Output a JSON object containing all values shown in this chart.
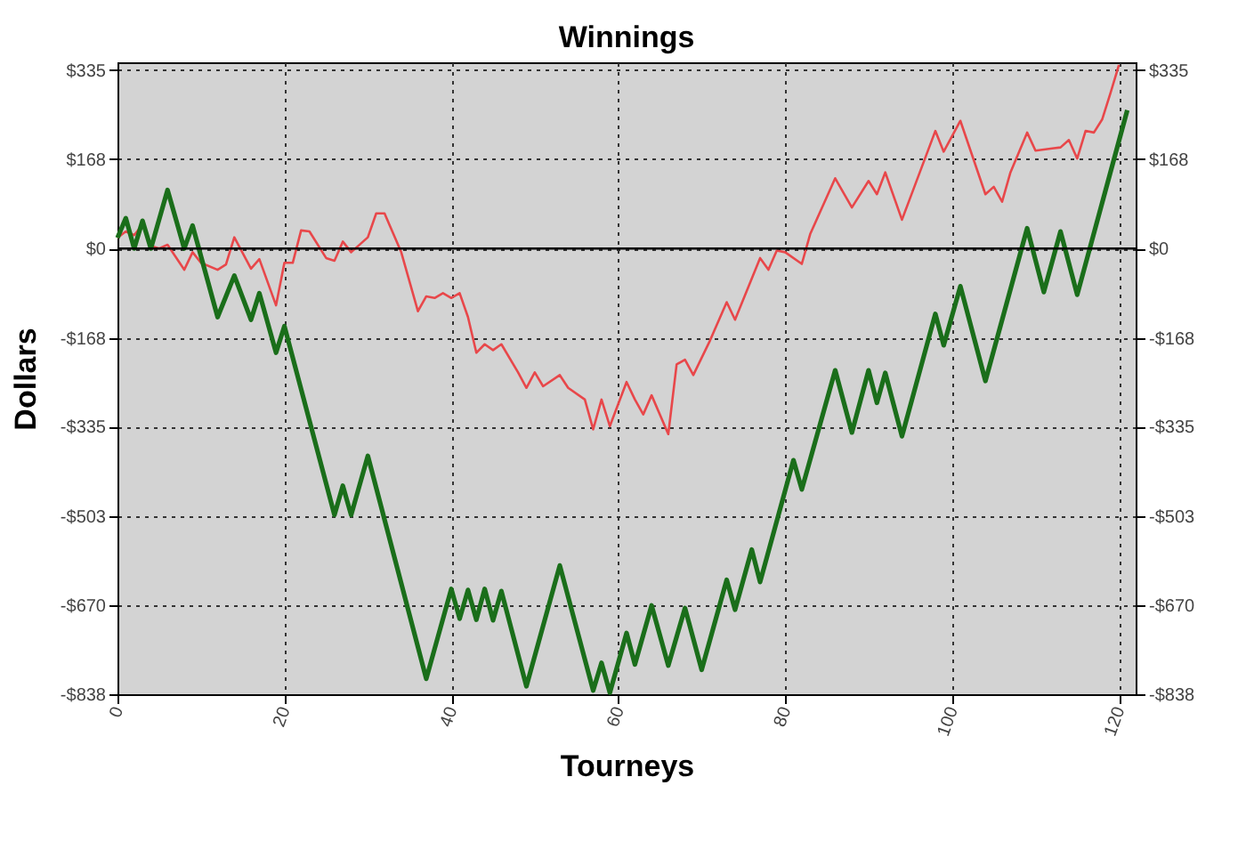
{
  "chart_data": {
    "type": "line",
    "title": "Winnings",
    "xlabel": "Tourneys",
    "ylabel": "Dollars",
    "xlim": [
      0,
      122
    ],
    "xticks": [
      0,
      20,
      40,
      60,
      80,
      100,
      120
    ],
    "ylim": [
      -838,
      350
    ],
    "yticks": [
      {
        "value": -838,
        "label": "-$838"
      },
      {
        "value": -670,
        "label": "-$670"
      },
      {
        "value": -503,
        "label": "-$503"
      },
      {
        "value": -335,
        "label": "-$335"
      },
      {
        "value": -168,
        "label": "-$168"
      },
      {
        "value": 0,
        "label": "$0"
      },
      {
        "value": 168,
        "label": "$168"
      },
      {
        "value": 335,
        "label": "$335"
      }
    ],
    "y2lim": [
      -838,
      350
    ],
    "y2ticks": [
      {
        "value": -838,
        "label": "-$838"
      },
      {
        "value": -670,
        "label": "-$670"
      },
      {
        "value": -503,
        "label": "-$503"
      },
      {
        "value": -335,
        "label": "-$335"
      },
      {
        "value": -168,
        "label": "-$168"
      },
      {
        "value": 0,
        "label": "$0"
      },
      {
        "value": 168,
        "label": "$168"
      },
      {
        "value": 335,
        "label": "$335"
      }
    ],
    "grid": true,
    "marker": "none",
    "line_style": "solid",
    "ref_lines": [
      {
        "axis": "y",
        "value": 0,
        "label": null,
        "color": "#000000"
      }
    ],
    "series": [
      {
        "color": "#e8474a",
        "x": [
          0,
          1,
          2,
          3,
          4,
          5,
          6,
          8,
          9,
          10,
          12,
          13,
          14,
          16,
          17,
          19,
          20,
          21,
          22,
          23,
          25,
          26,
          27,
          28,
          30,
          31,
          32,
          34,
          36,
          37,
          38,
          39,
          40,
          41,
          42,
          43,
          44,
          45,
          46,
          48,
          49,
          50,
          51,
          53,
          54,
          56,
          57,
          58,
          59,
          61,
          62,
          63,
          64,
          66,
          67,
          68,
          69,
          71,
          73,
          74,
          77,
          78,
          79,
          80,
          82,
          83,
          86,
          88,
          90,
          91,
          92,
          94,
          98,
          99,
          101,
          104,
          105,
          106,
          107,
          109,
          110,
          112,
          113,
          114,
          115,
          116,
          117,
          118,
          119,
          120
        ],
        "values": [
          20,
          32,
          25,
          45,
          5,
          0,
          7,
          -40,
          -7,
          -27,
          -40,
          -30,
          21,
          -38,
          -20,
          -107,
          -27,
          -27,
          34,
          32,
          -18,
          -23,
          13,
          -7,
          21,
          66,
          66,
          -7,
          -118,
          -90,
          -93,
          -84,
          -93,
          -84,
          -129,
          -196,
          -180,
          -191,
          -180,
          -233,
          -262,
          -233,
          -259,
          -238,
          -262,
          -284,
          -340,
          -284,
          -334,
          -251,
          -284,
          -312,
          -276,
          -349,
          -218,
          -209,
          -238,
          -173,
          -101,
          -134,
          -18,
          -40,
          -4,
          -7,
          -29,
          27,
          132,
          77,
          127,
          102,
          143,
          54,
          221,
          182,
          240,
          102,
          116,
          88,
          143,
          218,
          184,
          188,
          190,
          204,
          169,
          221,
          218,
          243,
          293,
          345
        ]
      },
      {
        "color": "#1a6e1a",
        "x": [
          0,
          1,
          2,
          3,
          4,
          6,
          8,
          9,
          12,
          14,
          16,
          17,
          19,
          20,
          26,
          27,
          28,
          30,
          37,
          40,
          41,
          42,
          43,
          44,
          45,
          46,
          49,
          53,
          57,
          58,
          59,
          61,
          62,
          64,
          66,
          68,
          70,
          73,
          74,
          76,
          77,
          81,
          82,
          86,
          88,
          90,
          91,
          92,
          94,
          98,
          99,
          101,
          104,
          109,
          111,
          113,
          115,
          121
        ],
        "values": [
          20,
          57,
          0,
          52,
          0,
          110,
          0,
          43,
          -129,
          -51,
          -134,
          -84,
          -196,
          -146,
          -501,
          -446,
          -501,
          -390,
          -809,
          -640,
          -696,
          -642,
          -698,
          -640,
          -699,
          -644,
          -823,
          -596,
          -831,
          -779,
          -835,
          -723,
          -782,
          -671,
          -784,
          -676,
          -792,
          -623,
          -679,
          -566,
          -627,
          -398,
          -453,
          -229,
          -346,
          -229,
          -290,
          -234,
          -353,
          -123,
          -182,
          -71,
          -249,
          38,
          -82,
          32,
          -87,
          260
        ]
      }
    ]
  }
}
